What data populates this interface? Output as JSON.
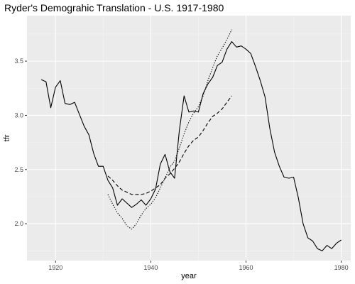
{
  "chart_data": {
    "type": "line",
    "title": "Ryder's Demograhic Translation - U.S. 1917-1980",
    "xlabel": "year",
    "ylabel": "tfr",
    "xlim": [
      1914,
      1982
    ],
    "ylim": [
      1.66,
      3.92
    ],
    "x_ticks": [
      1920,
      1940,
      1960,
      1980
    ],
    "x_tick_labels": [
      "1920",
      "1940",
      "1960",
      "1980"
    ],
    "y_ticks": [
      2.0,
      2.5,
      3.0,
      3.5
    ],
    "y_tick_labels": [
      "2.0",
      "2.5",
      "3.0",
      "3.5"
    ],
    "grid": true,
    "legend": "none",
    "colors": {
      "panel": "#ebebeb",
      "grid_major": "#ffffff",
      "grid_minor": "#f4f4f4",
      "line": "#000000",
      "tick_text": "#4d4d4d"
    },
    "series": [
      {
        "style": "solid",
        "x": [
          1917,
          1918,
          1919,
          1920,
          1921,
          1922,
          1923,
          1924,
          1925,
          1926,
          1927,
          1928,
          1929,
          1930,
          1931,
          1932,
          1933,
          1934,
          1935,
          1936,
          1937,
          1938,
          1939,
          1940,
          1941,
          1942,
          1943,
          1944,
          1945,
          1946,
          1947,
          1948,
          1949,
          1950,
          1951,
          1952,
          1953,
          1954,
          1955,
          1956,
          1957,
          1958,
          1959,
          1960,
          1961,
          1962,
          1963,
          1964,
          1965,
          1966,
          1967,
          1968,
          1969,
          1970,
          1971,
          1972,
          1973,
          1974,
          1975,
          1976,
          1977,
          1978,
          1979,
          1980
        ],
        "y": [
          3.33,
          3.31,
          3.07,
          3.26,
          3.32,
          3.11,
          3.1,
          3.12,
          3.01,
          2.9,
          2.82,
          2.65,
          2.53,
          2.53,
          2.4,
          2.33,
          2.17,
          2.23,
          2.19,
          2.15,
          2.18,
          2.22,
          2.17,
          2.23,
          2.32,
          2.55,
          2.64,
          2.48,
          2.42,
          2.86,
          3.18,
          3.03,
          3.04,
          3.03,
          3.2,
          3.29,
          3.35,
          3.46,
          3.49,
          3.61,
          3.68,
          3.63,
          3.64,
          3.61,
          3.57,
          3.45,
          3.32,
          3.17,
          2.88,
          2.66,
          2.53,
          2.43,
          2.42,
          2.43,
          2.24,
          2.0,
          1.87,
          1.84,
          1.77,
          1.75,
          1.8,
          1.77,
          1.82,
          1.85
        ]
      },
      {
        "style": "dashed",
        "x": [
          1931,
          1932,
          1933,
          1934,
          1935,
          1936,
          1937,
          1938,
          1939,
          1940,
          1941,
          1942,
          1943,
          1944,
          1945,
          1946,
          1947,
          1948,
          1949,
          1950,
          1951,
          1952,
          1953,
          1954,
          1955,
          1956,
          1957
        ],
        "y": [
          2.44,
          2.4,
          2.35,
          2.31,
          2.29,
          2.27,
          2.27,
          2.27,
          2.28,
          2.3,
          2.33,
          2.36,
          2.42,
          2.46,
          2.51,
          2.57,
          2.65,
          2.72,
          2.77,
          2.8,
          2.86,
          2.93,
          2.99,
          3.02,
          3.06,
          3.12,
          3.18
        ]
      },
      {
        "style": "dotted",
        "x": [
          1931,
          1932,
          1933,
          1934,
          1935,
          1936,
          1937,
          1938,
          1939,
          1940,
          1941,
          1942,
          1943,
          1944,
          1945,
          1946,
          1947,
          1948,
          1949,
          1950,
          1951,
          1952,
          1953,
          1954,
          1955,
          1956,
          1957
        ],
        "y": [
          2.27,
          2.18,
          2.1,
          2.05,
          1.98,
          1.95,
          2.0,
          2.08,
          2.14,
          2.18,
          2.24,
          2.33,
          2.42,
          2.52,
          2.58,
          2.7,
          2.83,
          2.94,
          3.02,
          3.08,
          3.18,
          3.32,
          3.44,
          3.55,
          3.62,
          3.7,
          3.79
        ]
      }
    ]
  }
}
